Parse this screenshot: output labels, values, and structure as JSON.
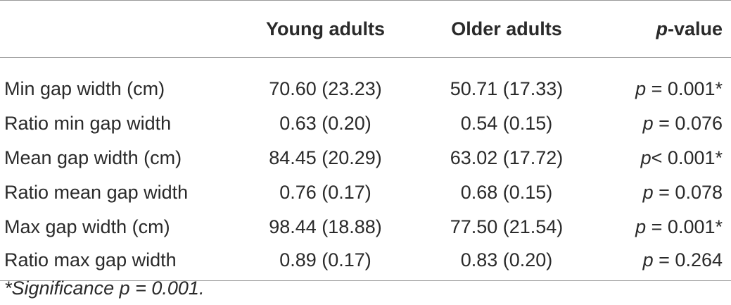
{
  "table": {
    "headers": [
      "",
      "Young adults",
      "Older adults",
      "p-value"
    ],
    "header_pvalue_italic": "p",
    "header_pvalue_rest": "-value",
    "rows": [
      {
        "label": "Min gap width (cm)",
        "young": "70.60 (23.23)",
        "older": "50.71 (17.33)",
        "p_prefix": "p",
        "p_rest": " = 0.001*"
      },
      {
        "label": "Ratio min gap width",
        "young": "0.63 (0.20)",
        "older": "0.54 (0.15)",
        "p_prefix": "p",
        "p_rest": " = 0.076"
      },
      {
        "label": "Mean gap width (cm)",
        "young": "84.45 (20.29)",
        "older": "63.02 (17.72)",
        "p_prefix": "p",
        "p_rest": "< 0.001*"
      },
      {
        "label": "Ratio mean gap width",
        "young": "0.76 (0.17)",
        "older": "0.68 (0.15)",
        "p_prefix": "p",
        "p_rest": " = 0.078"
      },
      {
        "label": "Max gap width (cm)",
        "young": "98.44 (18.88)",
        "older": "77.50 (21.54)",
        "p_prefix": "p",
        "p_rest": " = 0.001*"
      },
      {
        "label": "Ratio max gap width",
        "young": "0.89 (0.17)",
        "older": "0.83 (0.20)",
        "p_prefix": "p",
        "p_rest": " = 0.264"
      }
    ]
  },
  "footnote": "*Significance p = 0.001."
}
